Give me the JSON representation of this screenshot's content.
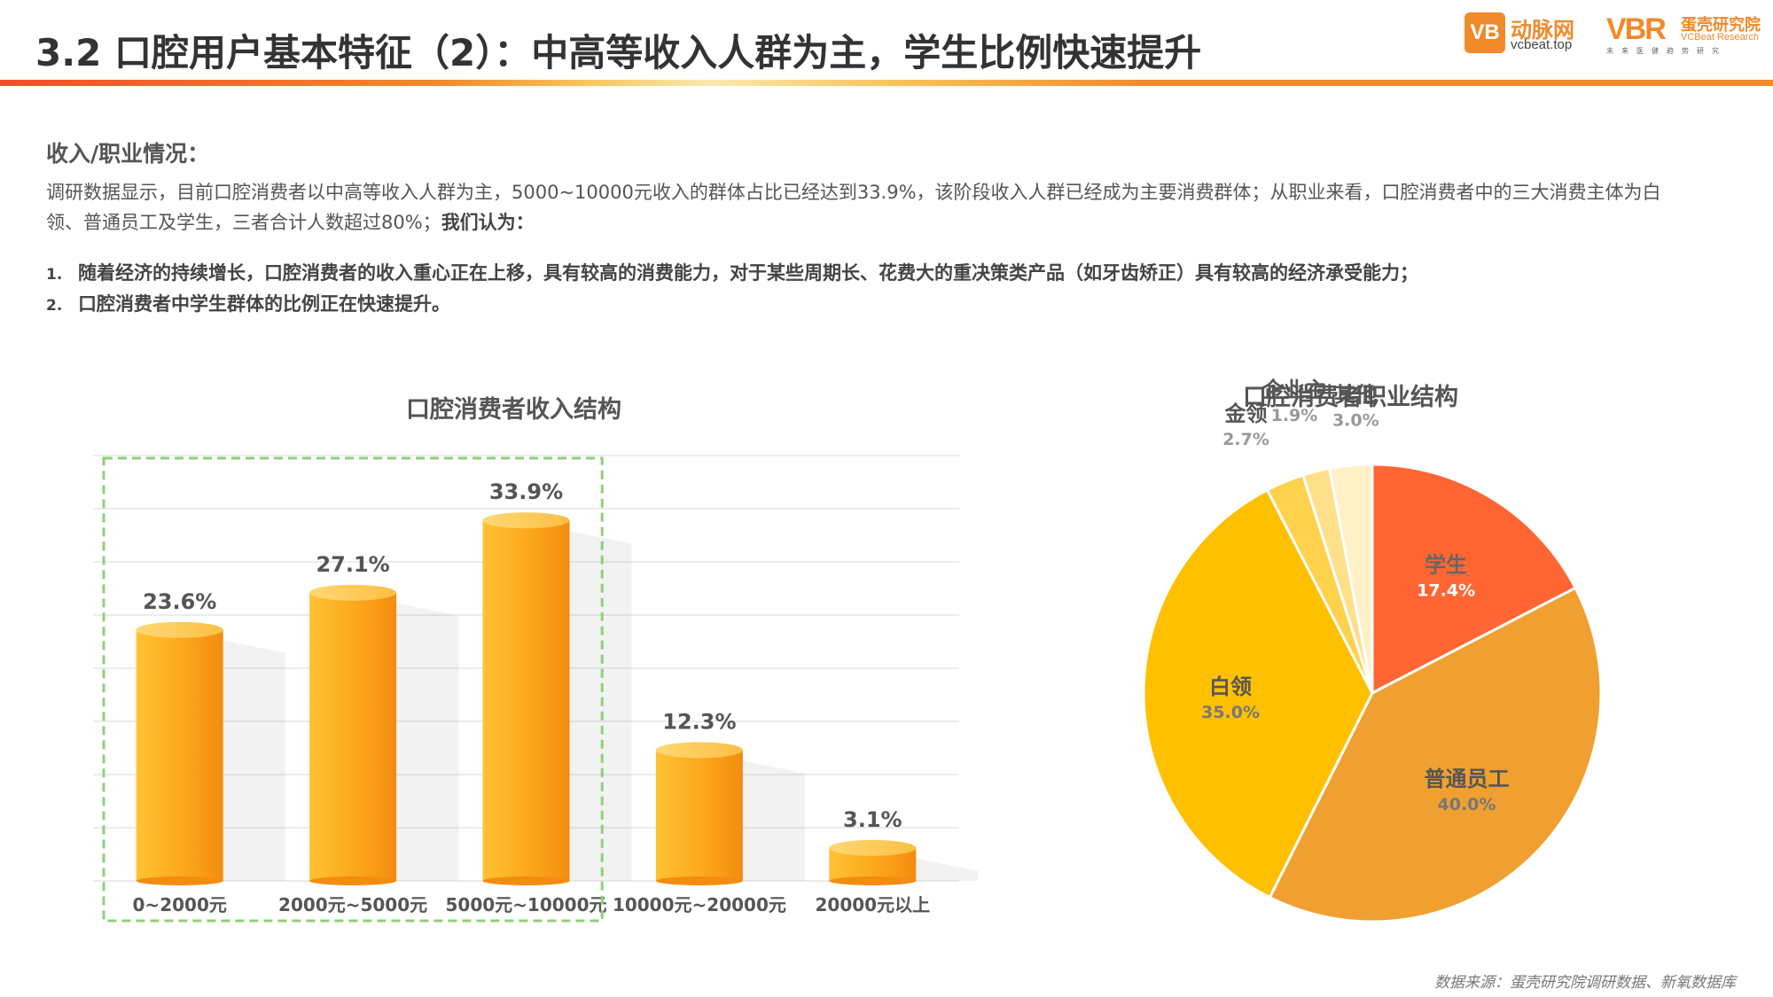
{
  "header": {
    "title_prefix": "3.2 口腔用户基本特征（2）：",
    "title_main": "中高等收入人群为主，学生比例快速提升"
  },
  "logos": {
    "vcbeat_mark": "VB",
    "vcbeat_cn": "动脉网",
    "vcbeat_en": "vcbeat.top",
    "vbr_mark": "VBR",
    "vbr_cn": "蛋壳研究院",
    "vbr_en": "VCBeat Research",
    "vbr_tagline": "未来医健趋势研究"
  },
  "colors": {
    "accent_orange": "#f08a2b",
    "bar_fill": "#fba71b",
    "pie_student": "#ff6633",
    "pie_staff": "#f0a030",
    "pie_whitecollar": "#ffc000",
    "pie_finance": "#ffd24d",
    "pie_owner": "#ffe08a",
    "pie_other": "#fff0c8",
    "highlight_box": "#8fcf7a"
  },
  "content": {
    "section_heading": "收入/职业情况：",
    "intro_text": "调研数据显示，目前口腔消费者以中高等收入人群为主，5000~10000元收入的群体占比已经达到33.9%，该阶段收入人群已经成为主要消费群体；从职业来看，口腔消费者中的三大消费主体为白领、普通员工及学生，三者合计人数超过80%；",
    "intro_bold": "我们认为：",
    "points": [
      {
        "index": "1.",
        "text": "随着经济的持续增长，口腔消费者的收入重心正在上移，具有较高的消费能力，对于某些周期长、花费大的重决策类产品（如牙齿矫正）具有较高的经济承受能力；"
      },
      {
        "index": "2.",
        "text": "口腔消费者中学生群体的比例正在快速提升。"
      }
    ]
  },
  "chart_data": [
    {
      "type": "bar",
      "title": "口腔消费者收入结构",
      "categories": [
        "0~2000元",
        "2000元~5000元",
        "5000元~10000元",
        "10000元~20000元",
        "20000元以上"
      ],
      "values": [
        23.6,
        27.1,
        33.9,
        12.3,
        3.1
      ],
      "data_labels": [
        "23.6%",
        "27.1%",
        "33.9%",
        "12.3%",
        "3.1%"
      ],
      "ylim": [
        0,
        40
      ],
      "grid": true,
      "highlighted_categories": [
        "0~2000元",
        "2000元~5000元",
        "5000元~10000元"
      ]
    },
    {
      "type": "pie",
      "title": "口腔消费者职业结构",
      "slices": [
        {
          "label": "学生",
          "value": 17.4,
          "value_label": "17.4%",
          "color": "#ff6633"
        },
        {
          "label": "普通员工",
          "value": 40.0,
          "value_label": "40.0%",
          "color": "#f0a030"
        },
        {
          "label": "白领",
          "value": 35.0,
          "value_label": "35.0%",
          "color": "#ffc000"
        },
        {
          "label": "金领",
          "value": 2.7,
          "value_label": "2.7%",
          "color": "#ffd24d"
        },
        {
          "label": "企业主",
          "value": 1.9,
          "value_label": "1.9%",
          "color": "#ffe08a"
        },
        {
          "label": "其他",
          "value": 3.0,
          "value_label": "3.0%",
          "color": "#fff0c8"
        }
      ]
    }
  ],
  "footer": {
    "source": "数据来源：蛋壳研究院调研数据、新氧数据库"
  }
}
